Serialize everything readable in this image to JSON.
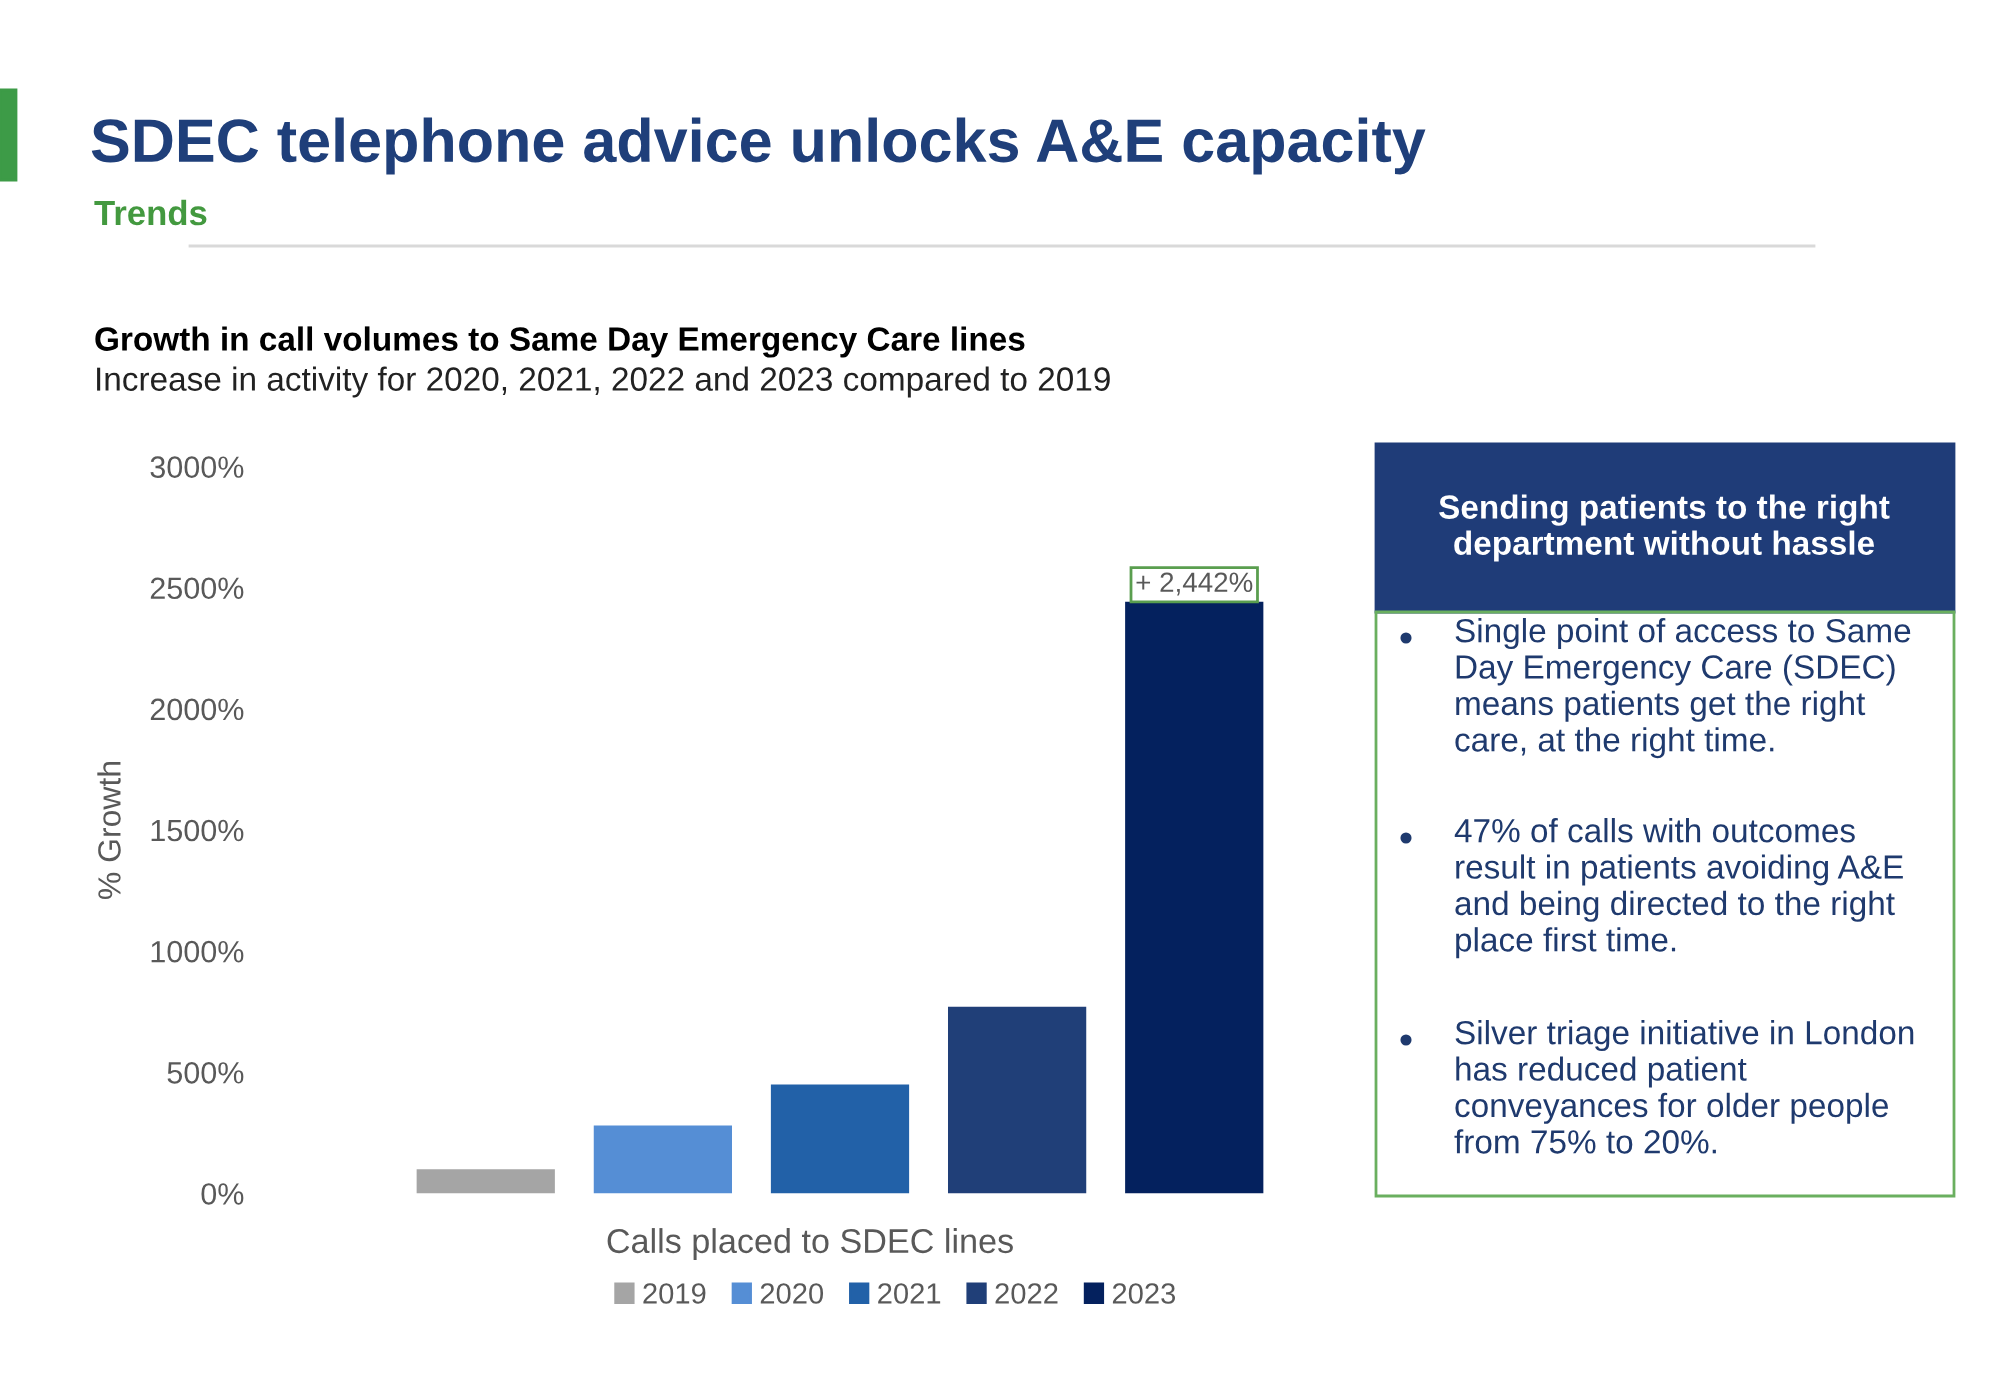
{
  "chart_data": {
    "type": "bar",
    "title": "SDEC telephone advice unlocks A&E capacity",
    "subtitle": "Trends",
    "annotations": [
      "Growth in call volumes to Same Day Emergency Care lines",
      "Increase in activity for 2020, 2021, 2022 and 2023 compared to 2019",
      "Sending patients to the right\ndepartment without hassle",
      "Single point of access to Same\nDay Emergency Care (SDEC)\nmeans patients get the right\ncare, at the right time.",
      "47% of calls with outcomes\nresult in patients avoiding A&E\nand being directed to the right\nplace first time.",
      "Silver triage initiative in London\nhas reduced patient\nconveyances for older people\nfrom 75% to 20%."
    ],
    "categories": [
      null
    ],
    "xlabel": "Calls placed to SDEC lines",
    "ylabel": "% Growth",
    "series": [
      {
        "name": "2019",
        "color": "#a5a5a5",
        "values": [
          100
        ]
      },
      {
        "name": "2020",
        "color": "#558ed5",
        "values": [
          280
        ]
      },
      {
        "name": "2021",
        "color": "#2261a8",
        "values": [
          450
        ]
      },
      {
        "name": "2022",
        "color": "#203f78",
        "values": [
          770
        ]
      },
      {
        "name": "2023",
        "color": "#04215e",
        "values": [
          2442
        ],
        "value_labels": [
          "+ 2,442%"
        ]
      }
    ],
    "ylim": [
      0,
      3000
    ],
    "yticks": [
      {
        "value": 0,
        "label": "0%"
      },
      {
        "value": 500,
        "label": "500%"
      },
      {
        "value": 1000,
        "label": "1000%"
      },
      {
        "value": 1500,
        "label": "1500%"
      },
      {
        "value": 2000,
        "label": "2000%"
      },
      {
        "value": 2500,
        "label": "2500%"
      },
      {
        "value": 3000,
        "label": "3000%"
      }
    ],
    "legend": "bottom"
  }
}
